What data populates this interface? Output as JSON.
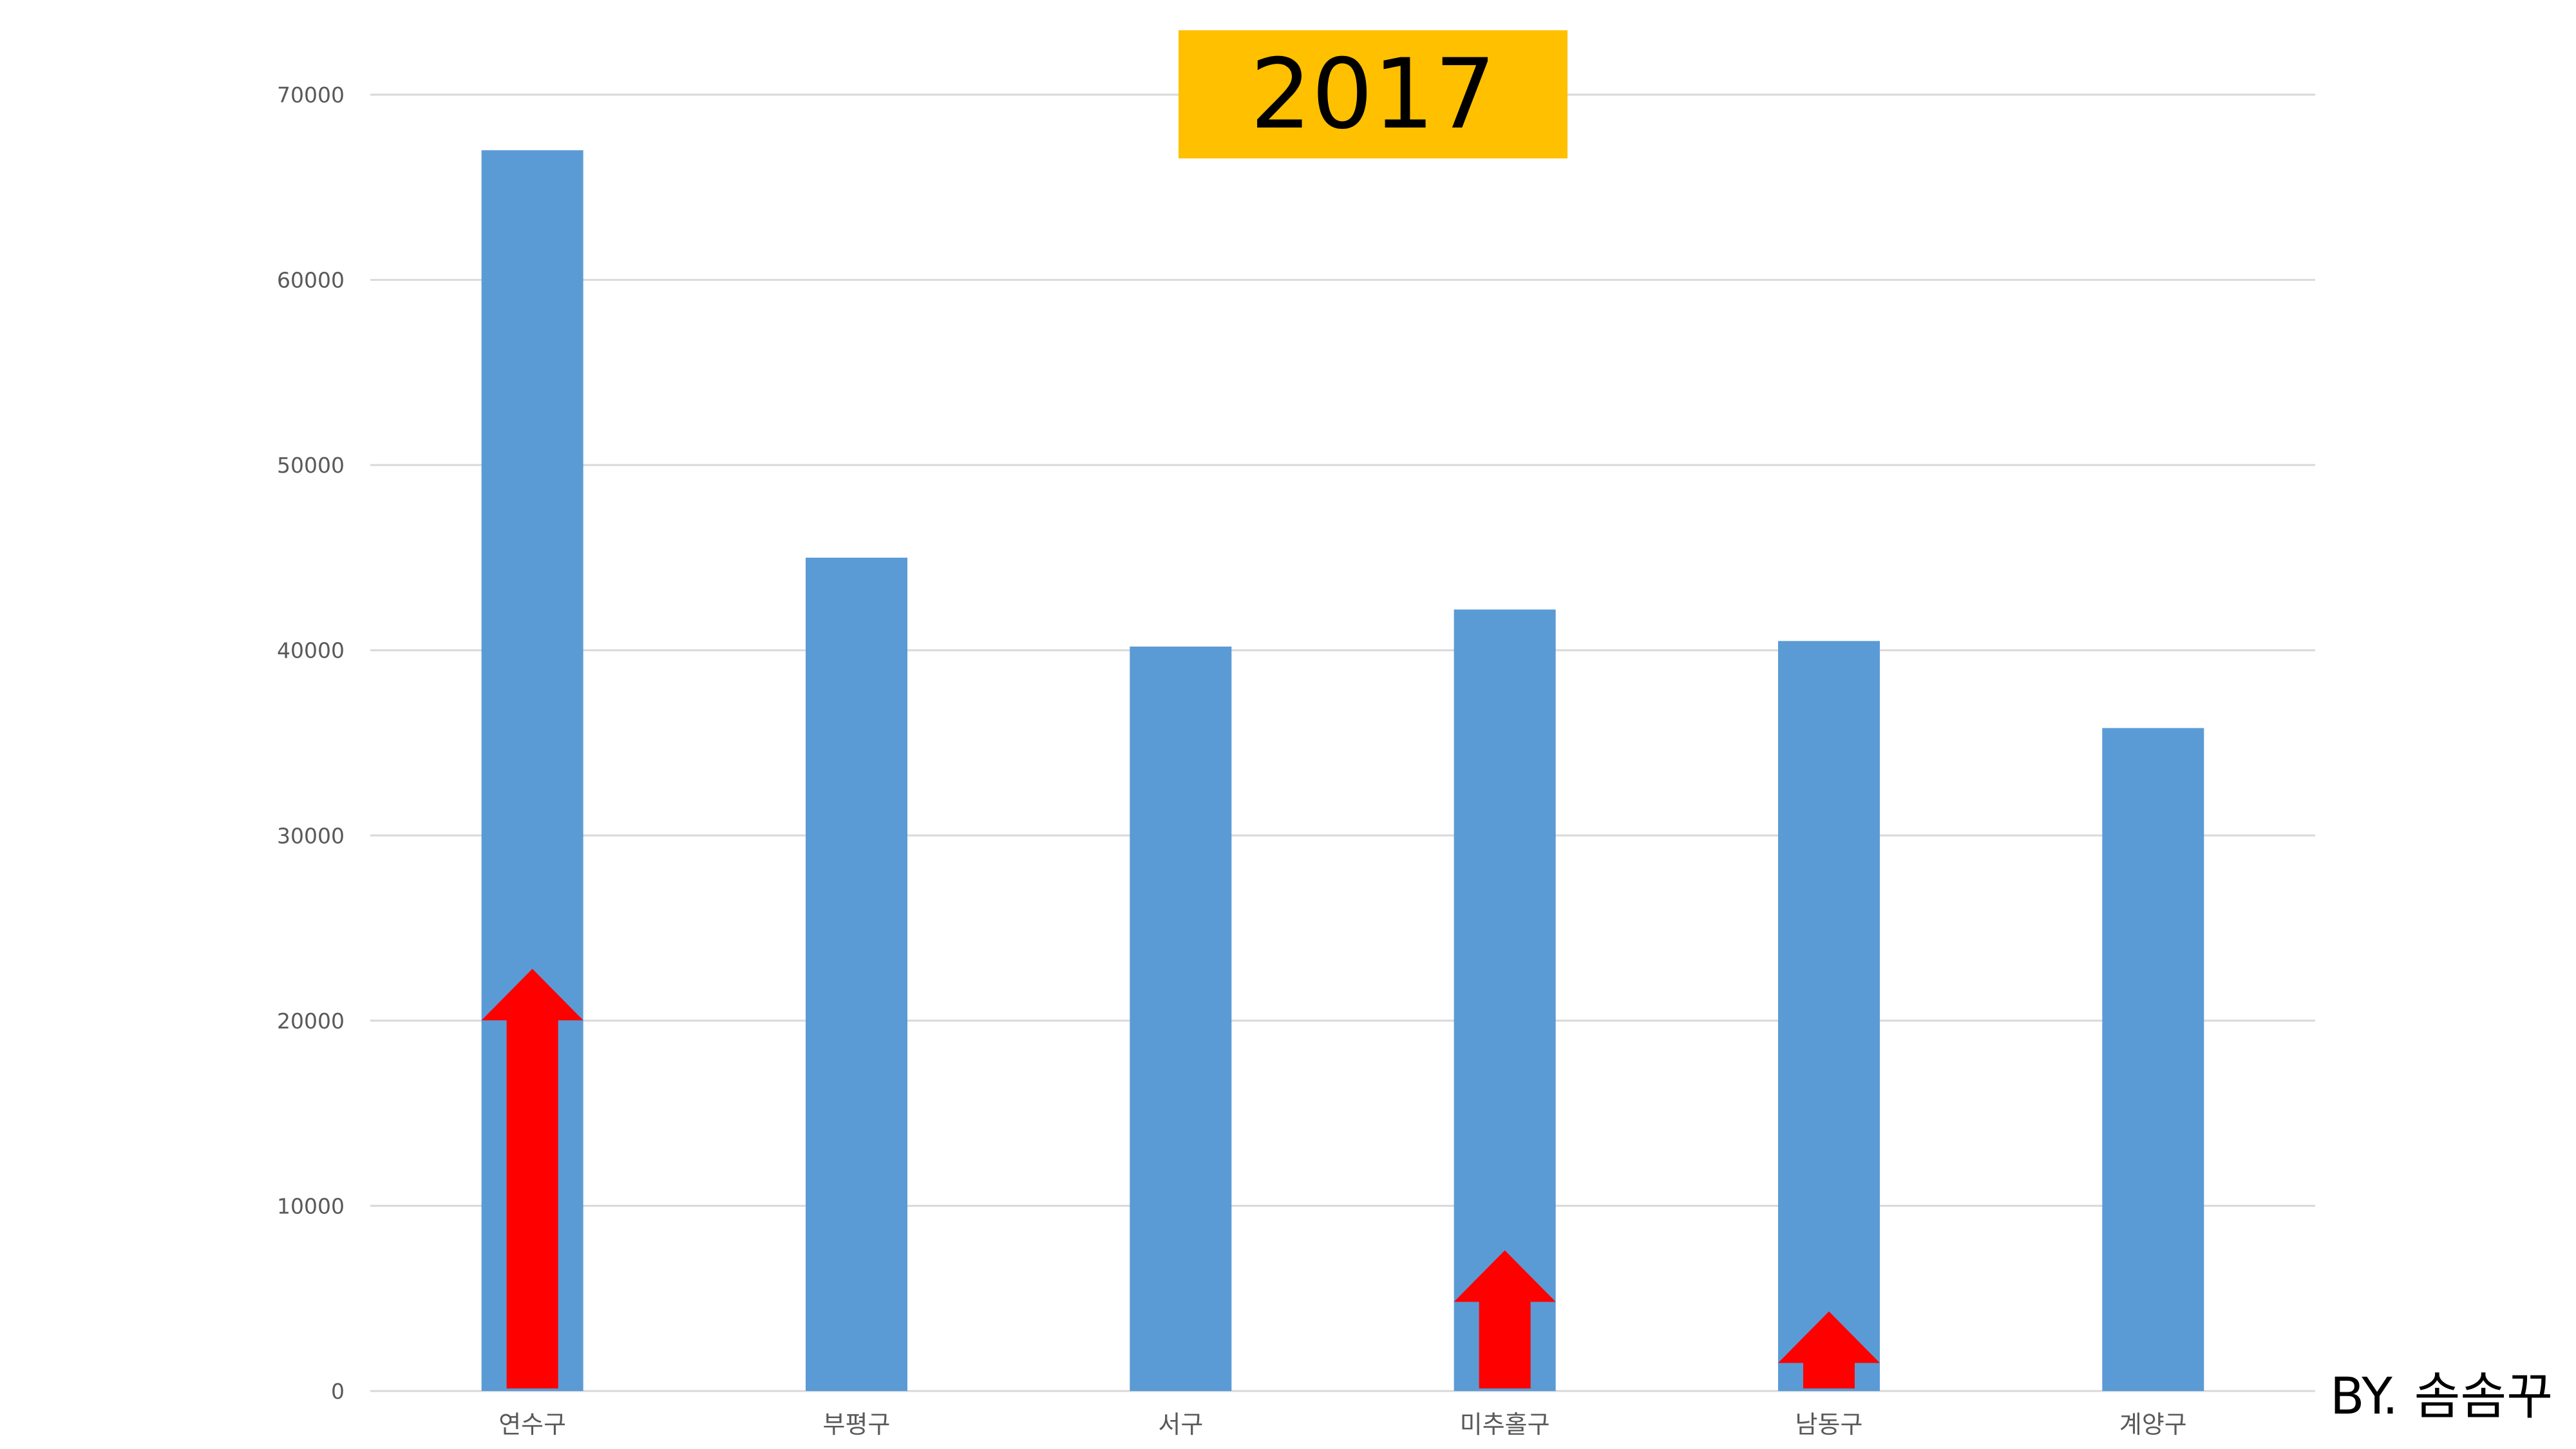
{
  "chart_data": {
    "type": "bar",
    "title": "2017",
    "categories": [
      "연수구",
      "부평구",
      "서구",
      "미추홀구",
      "남동구",
      "계양구"
    ],
    "values": [
      67000,
      45000,
      40200,
      42200,
      40500,
      35800
    ],
    "ylim": [
      0,
      70000
    ],
    "yticks": [
      0,
      10000,
      20000,
      30000,
      40000,
      50000,
      60000,
      70000
    ],
    "xlabel": "",
    "ylabel": "",
    "grid": true,
    "legend": "none",
    "bar_color": "#5B9BD5",
    "annotations": [
      {
        "kind": "up-arrow",
        "category": "연수구",
        "value": 22800,
        "color": "#FF0000"
      },
      {
        "kind": "up-arrow",
        "category": "미추홀구",
        "value": 7600,
        "color": "#FF0000"
      },
      {
        "kind": "up-arrow",
        "category": "남동구",
        "value": 4300,
        "color": "#FF0000"
      }
    ]
  },
  "title_box_color": "#FFC000",
  "credit": "BY. 솜솜꾸"
}
